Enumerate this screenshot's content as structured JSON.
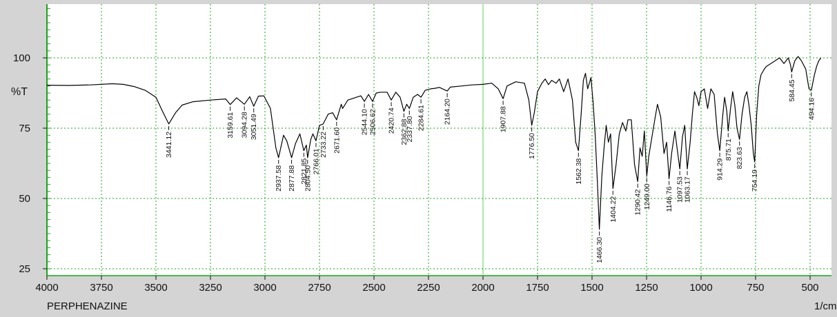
{
  "chart_data": {
    "type": "line",
    "sample_name": "PERPHENAZINE",
    "x_unit": "1/cm",
    "y_unit": "%T",
    "x_range": [
      4000,
      450
    ],
    "y_range": [
      22.5,
      120
    ],
    "x_ticks": [
      4000,
      3750,
      3500,
      3250,
      3000,
      2750,
      2500,
      2250,
      2000,
      1750,
      1500,
      1250,
      1000,
      750,
      500
    ],
    "y_ticks": [
      25,
      50,
      75,
      100
    ],
    "x_tick_labels": [
      "4000",
      "3750",
      "3500",
      "3250",
      "3000",
      "2750",
      "2500",
      "2250",
      "2000",
      "1750",
      "1500",
      "1250",
      "1000",
      "750",
      "500"
    ],
    "y_tick_labels": [
      "25",
      "50",
      "75",
      "100"
    ],
    "grid": true,
    "spectrum": [
      [
        4000,
        90.3
      ],
      [
        3900,
        90.2
      ],
      [
        3800,
        90.4
      ],
      [
        3700,
        90.8
      ],
      [
        3650,
        90.6
      ],
      [
        3600,
        89.8
      ],
      [
        3550,
        88.5
      ],
      [
        3500,
        86
      ],
      [
        3470,
        81
      ],
      [
        3441.12,
        76.5
      ],
      [
        3410,
        80.5
      ],
      [
        3380,
        83.2
      ],
      [
        3330,
        84.4
      ],
      [
        3250,
        85
      ],
      [
        3180,
        85.4
      ],
      [
        3159.61,
        83.4
      ],
      [
        3130,
        85.8
      ],
      [
        3094.28,
        83.5
      ],
      [
        3070,
        86.2
      ],
      [
        3051.49,
        82.8
      ],
      [
        3030,
        86.4
      ],
      [
        3005,
        86.5
      ],
      [
        2975,
        82
      ],
      [
        2950,
        68
      ],
      [
        2937.58,
        64.5
      ],
      [
        2915,
        72.5
      ],
      [
        2900,
        70.5
      ],
      [
        2877.88,
        64.5
      ],
      [
        2860,
        69.5
      ],
      [
        2840,
        73
      ],
      [
        2821.85,
        67
      ],
      [
        2810,
        69
      ],
      [
        2804.5,
        64.5
      ],
      [
        2790,
        71
      ],
      [
        2780,
        73
      ],
      [
        2766.01,
        70.5
      ],
      [
        2750,
        76
      ],
      [
        2733.22,
        76.5
      ],
      [
        2710,
        80
      ],
      [
        2690,
        80.5
      ],
      [
        2671.6,
        78
      ],
      [
        2650,
        83.5
      ],
      [
        2644.1,
        82
      ],
      [
        2620,
        85
      ],
      [
        2600,
        85.5
      ],
      [
        2580,
        86
      ],
      [
        2560,
        86.5
      ],
      [
        2544.1,
        84.5
      ],
      [
        2525,
        87
      ],
      [
        2506.62,
        84.5
      ],
      [
        2490,
        87.5
      ],
      [
        2470,
        87.8
      ],
      [
        2440,
        87.8
      ],
      [
        2420.74,
        85
      ],
      [
        2400,
        87.8
      ],
      [
        2380,
        86
      ],
      [
        2362.88,
        81
      ],
      [
        2350,
        83.5
      ],
      [
        2337.8,
        82
      ],
      [
        2320,
        86
      ],
      [
        2300,
        87
      ],
      [
        2284.61,
        86
      ],
      [
        2265,
        88.5
      ],
      [
        2240,
        89
      ],
      [
        2220,
        89.2
      ],
      [
        2200,
        89.5
      ],
      [
        2164.2,
        88.2
      ],
      [
        2150,
        89.6
      ],
      [
        2100,
        90
      ],
      [
        2050,
        90.4
      ],
      [
        2000,
        90.6
      ],
      [
        1960,
        91
      ],
      [
        1930,
        89
      ],
      [
        1907.88,
        85.5
      ],
      [
        1890,
        90
      ],
      [
        1850,
        91.5
      ],
      [
        1810,
        91
      ],
      [
        1790,
        85
      ],
      [
        1776.5,
        76
      ],
      [
        1765,
        80.5
      ],
      [
        1750,
        88
      ],
      [
        1730,
        91
      ],
      [
        1715,
        92.5
      ],
      [
        1700,
        90.5
      ],
      [
        1685,
        92
      ],
      [
        1665,
        91
      ],
      [
        1650,
        92.5
      ],
      [
        1630,
        88
      ],
      [
        1610,
        92.5
      ],
      [
        1590,
        85
      ],
      [
        1575,
        70
      ],
      [
        1562.38,
        67
      ],
      [
        1550,
        80
      ],
      [
        1540,
        92
      ],
      [
        1530,
        94.5
      ],
      [
        1520,
        89
      ],
      [
        1505,
        93
      ],
      [
        1495,
        84
      ],
      [
        1485,
        72
      ],
      [
        1475,
        55
      ],
      [
        1466.3,
        39
      ],
      [
        1455,
        58
      ],
      [
        1445,
        68
      ],
      [
        1435,
        76
      ],
      [
        1425,
        70
      ],
      [
        1415,
        73
      ],
      [
        1404.22,
        53.5
      ],
      [
        1390,
        62
      ],
      [
        1375,
        73
      ],
      [
        1360,
        77
      ],
      [
        1345,
        74
      ],
      [
        1335,
        78
      ],
      [
        1320,
        78
      ],
      [
        1305,
        62
      ],
      [
        1290.42,
        56
      ],
      [
        1280,
        68
      ],
      [
        1270,
        65
      ],
      [
        1260,
        74
      ],
      [
        1249.0,
        58
      ],
      [
        1240,
        65
      ],
      [
        1225,
        72
      ],
      [
        1210,
        79
      ],
      [
        1200,
        83.5
      ],
      [
        1185,
        79
      ],
      [
        1170,
        66
      ],
      [
        1158,
        70
      ],
      [
        1146.76,
        57
      ],
      [
        1135,
        66
      ],
      [
        1120,
        74
      ],
      [
        1110,
        68
      ],
      [
        1097.53,
        60.5
      ],
      [
        1085,
        72
      ],
      [
        1075,
        76
      ],
      [
        1063.17,
        60.5
      ],
      [
        1050,
        70
      ],
      [
        1040,
        80
      ],
      [
        1030,
        88
      ],
      [
        1020,
        86
      ],
      [
        1010,
        83
      ],
      [
        1000,
        88
      ],
      [
        985,
        89
      ],
      [
        970,
        82
      ],
      [
        955,
        89
      ],
      [
        940,
        87
      ],
      [
        925,
        73
      ],
      [
        914.29,
        67
      ],
      [
        900,
        80
      ],
      [
        892,
        86
      ],
      [
        882,
        81
      ],
      [
        875.71,
        74
      ],
      [
        865,
        82
      ],
      [
        855,
        88
      ],
      [
        845,
        83
      ],
      [
        835,
        75
      ],
      [
        823.63,
        71
      ],
      [
        812,
        80
      ],
      [
        800,
        86
      ],
      [
        790,
        88
      ],
      [
        780,
        83
      ],
      [
        770,
        76
      ],
      [
        760,
        66
      ],
      [
        754.19,
        63
      ],
      [
        745,
        80
      ],
      [
        735,
        90
      ],
      [
        725,
        94
      ],
      [
        710,
        96
      ],
      [
        700,
        97
      ],
      [
        680,
        98
      ],
      [
        660,
        99
      ],
      [
        640,
        100
      ],
      [
        620,
        98
      ],
      [
        600,
        100
      ],
      [
        590,
        97.5
      ],
      [
        584.45,
        95
      ],
      [
        570,
        99
      ],
      [
        555,
        100.5
      ],
      [
        540,
        99
      ],
      [
        520,
        96
      ],
      [
        505,
        89
      ],
      [
        494.16,
        88.5
      ],
      [
        480,
        94
      ],
      [
        470,
        97
      ],
      [
        460,
        99
      ],
      [
        450,
        100
      ]
    ],
    "peak_labels": [
      {
        "x": 3441.12,
        "label": "3441.12"
      },
      {
        "x": 3159.61,
        "label": "3159.61"
      },
      {
        "x": 3094.28,
        "label": "3094.28"
      },
      {
        "x": 3051.49,
        "label": "3051.49"
      },
      {
        "x": 2937.58,
        "label": "2937.58"
      },
      {
        "x": 2877.88,
        "label": "2877.88"
      },
      {
        "x": 2821.85,
        "label": "2821.85"
      },
      {
        "x": 2804.5,
        "label": "2804.50"
      },
      {
        "x": 2766.01,
        "label": "2766.01"
      },
      {
        "x": 2733.22,
        "label": "2733.22"
      },
      {
        "x": 2671.6,
        "label": "2671.60"
      },
      {
        "x": 2544.1,
        "label": "2544.10"
      },
      {
        "x": 2506.62,
        "label": "2506.62"
      },
      {
        "x": 2420.74,
        "label": "2420.74"
      },
      {
        "x": 2362.88,
        "label": "2362.88"
      },
      {
        "x": 2337.8,
        "label": "2337.80"
      },
      {
        "x": 2284.61,
        "label": "2284.61"
      },
      {
        "x": 2164.2,
        "label": "2164.20"
      },
      {
        "x": 1907.88,
        "label": "1907.88"
      },
      {
        "x": 1776.5,
        "label": "1776.50"
      },
      {
        "x": 1562.38,
        "label": "1562.38"
      },
      {
        "x": 1466.3,
        "label": "1466.30"
      },
      {
        "x": 1404.22,
        "label": "1404.22"
      },
      {
        "x": 1290.42,
        "label": "1290.42"
      },
      {
        "x": 1249.0,
        "label": "1249.00"
      },
      {
        "x": 1146.76,
        "label": "1146.76"
      },
      {
        "x": 1097.53,
        "label": "1097.53"
      },
      {
        "x": 1063.17,
        "label": "1063.17"
      },
      {
        "x": 914.29,
        "label": "914.29"
      },
      {
        "x": 875.71,
        "label": "875.71"
      },
      {
        "x": 823.63,
        "label": "823.63"
      },
      {
        "x": 754.19,
        "label": "754.19"
      },
      {
        "x": 584.45,
        "label": "584.45"
      },
      {
        "x": 494.16,
        "label": "494.16"
      }
    ],
    "colors": {
      "background": "#d4d4d4",
      "plot_background": "#ffffff",
      "grid": "#1aa31a",
      "highlight_line": "#8fe08f",
      "spectrum": "#000000"
    }
  }
}
